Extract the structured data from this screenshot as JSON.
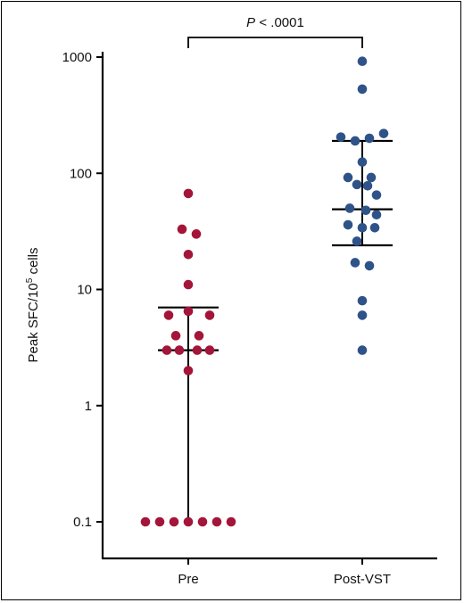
{
  "chart_data": {
    "type": "scatter",
    "yscale": "log",
    "ylim": [
      0.1,
      1000
    ],
    "yticks": [
      {
        "value": 1000,
        "label": "1000"
      },
      {
        "value": 100,
        "label": "100"
      },
      {
        "value": 10,
        "label": "10"
      },
      {
        "value": 1,
        "label": "1"
      },
      {
        "value": 0.1,
        "label": "0.1"
      }
    ],
    "ylabel": {
      "main": "Peak SFC/10",
      "sup": "5",
      "tail": " cells"
    },
    "categories": [
      "Pre",
      "Post-VST"
    ],
    "annotation": {
      "italic": "P",
      "rest": " < .0001"
    },
    "colors": {
      "Pre": "#A4153A",
      "Post-VST": "#2F5389"
    },
    "series": [
      {
        "category": "Pre",
        "median": 3,
        "error_high": 7,
        "error_low": 0.1,
        "points": [
          {
            "y": 67,
            "dx": 0
          },
          {
            "y": 33,
            "dx": -7
          },
          {
            "y": 30,
            "dx": 9
          },
          {
            "y": 20,
            "dx": 0
          },
          {
            "y": 11,
            "dx": 0
          },
          {
            "y": 6.5,
            "dx": 0
          },
          {
            "y": 6,
            "dx": 24
          },
          {
            "y": 6,
            "dx": -22
          },
          {
            "y": 4,
            "dx": -14
          },
          {
            "y": 4,
            "dx": 12
          },
          {
            "y": 3,
            "dx": -24
          },
          {
            "y": 3,
            "dx": -10
          },
          {
            "y": 3,
            "dx": 10
          },
          {
            "y": 3,
            "dx": 24
          },
          {
            "y": 2,
            "dx": 0
          },
          {
            "y": 0.1,
            "dx": -48
          },
          {
            "y": 0.1,
            "dx": -32
          },
          {
            "y": 0.1,
            "dx": -16
          },
          {
            "y": 0.1,
            "dx": 0
          },
          {
            "y": 0.1,
            "dx": 16
          },
          {
            "y": 0.1,
            "dx": 32
          },
          {
            "y": 0.1,
            "dx": 48
          }
        ]
      },
      {
        "category": "Post-VST",
        "median": 49,
        "error_high": 190,
        "error_low": 24,
        "points": [
          {
            "y": 920,
            "dx": 0
          },
          {
            "y": 530,
            "dx": 0
          },
          {
            "y": 220,
            "dx": 24
          },
          {
            "y": 205,
            "dx": -24
          },
          {
            "y": 200,
            "dx": 8
          },
          {
            "y": 190,
            "dx": -8
          },
          {
            "y": 125,
            "dx": 0
          },
          {
            "y": 92,
            "dx": -16
          },
          {
            "y": 92,
            "dx": 10
          },
          {
            "y": 80,
            "dx": -6
          },
          {
            "y": 78,
            "dx": 6
          },
          {
            "y": 65,
            "dx": 16
          },
          {
            "y": 50,
            "dx": -14
          },
          {
            "y": 48,
            "dx": 4
          },
          {
            "y": 44,
            "dx": 16
          },
          {
            "y": 36,
            "dx": -16
          },
          {
            "y": 34,
            "dx": 0
          },
          {
            "y": 34,
            "dx": 14
          },
          {
            "y": 26,
            "dx": -6
          },
          {
            "y": 17,
            "dx": -8
          },
          {
            "y": 16,
            "dx": 8
          },
          {
            "y": 8,
            "dx": 0
          },
          {
            "y": 6,
            "dx": 0
          },
          {
            "y": 3,
            "dx": 0
          }
        ]
      }
    ]
  }
}
